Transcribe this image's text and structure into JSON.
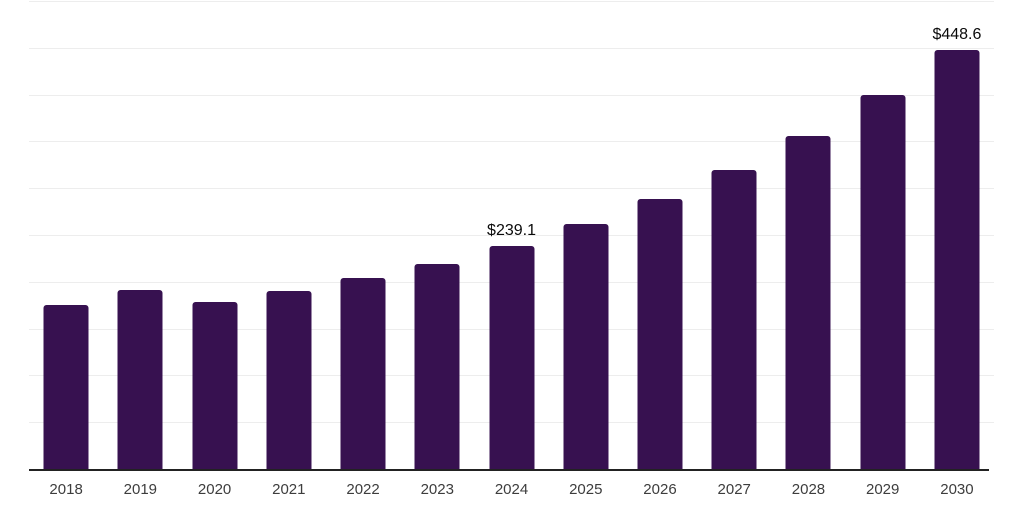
{
  "chart_data": {
    "type": "bar",
    "categories": [
      "2018",
      "2019",
      "2020",
      "2021",
      "2022",
      "2023",
      "2024",
      "2025",
      "2026",
      "2027",
      "2028",
      "2029",
      "2030"
    ],
    "values": [
      176.3,
      192.3,
      180.0,
      191.8,
      204.8,
      219.8,
      239.1,
      262.5,
      289.2,
      320.5,
      357.2,
      400.7,
      448.6
    ],
    "data_labels": [
      null,
      null,
      null,
      null,
      null,
      null,
      "$239.1",
      null,
      null,
      null,
      null,
      null,
      "$448.6"
    ],
    "currency_prefix": "$",
    "ylim": [
      0,
      500
    ],
    "gridline_step": 50,
    "grid": true,
    "legend": false,
    "y_axis_tick_labels_visible": false,
    "colors": {
      "bar": "#371150",
      "gridline": "#ededed",
      "axis_line": "#222222",
      "x_tick_label": "#3d3d3d",
      "value_label": "#0a0a0a",
      "background": "#ffffff"
    }
  }
}
